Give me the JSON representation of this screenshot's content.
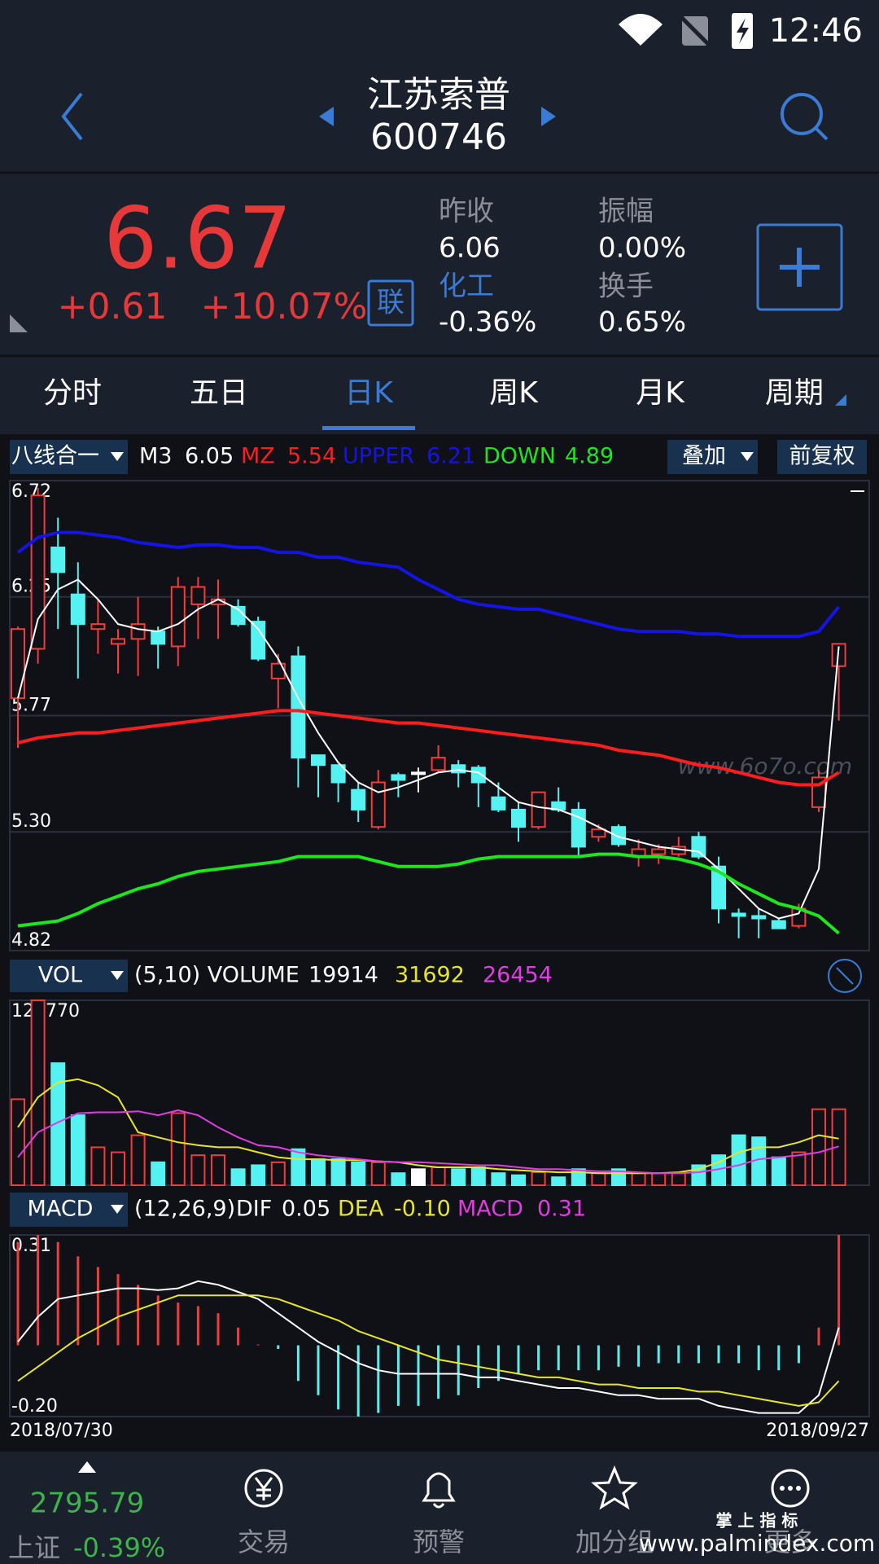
{
  "status_bar": {
    "time": "12:46"
  },
  "header": {
    "name": "江苏索普",
    "code": "600746"
  },
  "quote": {
    "price": "6.67",
    "change": "+0.61",
    "change_pct": "+10.07%",
    "badge": "联",
    "fields": [
      {
        "label": "昨收",
        "value": "6.06"
      },
      {
        "label": "振幅",
        "value": "0.00%"
      },
      {
        "label": "化工",
        "value": "-0.36%"
      },
      {
        "label": "换手",
        "value": "0.65%"
      }
    ]
  },
  "tabs": {
    "items": [
      "分时",
      "五日",
      "日K",
      "周K",
      "月K",
      "周期"
    ],
    "selected": 2
  },
  "chart_controls": {
    "overlay": "叠加",
    "adjust": "前复权"
  },
  "chart_data": [
    {
      "type": "candlestick",
      "indicator": "八线合一",
      "up_color": "#f03c3c",
      "down_color": "#55f2f2",
      "doji_color": "#ffffff",
      "open": [
        5.84,
        6.04,
        6.45,
        6.26,
        6.12,
        6.06,
        6.08,
        6.11,
        6.05,
        6.22,
        6.22,
        6.21,
        6.15,
        5.92,
        6.01,
        5.61,
        5.57,
        5.47,
        5.32,
        5.53,
        5.54,
        5.55,
        5.57,
        5.56,
        5.44,
        5.39,
        5.32,
        5.42,
        5.39,
        5.28,
        5.32,
        5.2,
        5.21,
        5.21,
        5.28,
        5.16,
        4.97,
        4.96,
        4.94,
        4.92,
        5.4,
        5.97
      ],
      "high": [
        6.13,
        6.69,
        6.57,
        6.39,
        6.24,
        6.12,
        6.25,
        6.13,
        6.33,
        6.33,
        6.32,
        6.24,
        6.17,
        6.02,
        6.05,
        5.61,
        5.57,
        5.5,
        5.55,
        5.54,
        5.56,
        5.65,
        5.59,
        5.57,
        5.5,
        5.42,
        5.46,
        5.48,
        5.42,
        5.33,
        5.33,
        5.27,
        5.25,
        5.28,
        5.3,
        5.2,
        4.99,
        4.99,
        4.95,
        5.01,
        5.55,
        6.06
      ],
      "low": [
        5.64,
        5.98,
        6.12,
        5.92,
        6.02,
        5.94,
        5.93,
        5.96,
        5.97,
        6.08,
        6.08,
        6.13,
        5.99,
        5.8,
        5.48,
        5.44,
        5.42,
        5.34,
        5.31,
        5.44,
        5.46,
        5.54,
        5.48,
        5.4,
        5.38,
        5.26,
        5.31,
        5.38,
        5.2,
        5.26,
        5.24,
        5.16,
        5.17,
        5.2,
        5.19,
        4.93,
        4.87,
        4.87,
        4.91,
        4.91,
        5.38,
        5.75
      ],
      "close": [
        6.12,
        6.66,
        6.35,
        6.14,
        6.14,
        6.08,
        6.14,
        6.06,
        6.29,
        6.29,
        6.24,
        6.14,
        6.0,
        5.98,
        5.6,
        5.57,
        5.5,
        5.39,
        5.5,
        5.51,
        5.54,
        5.6,
        5.54,
        5.5,
        5.39,
        5.32,
        5.46,
        5.39,
        5.24,
        5.31,
        5.25,
        5.23,
        5.23,
        5.24,
        5.2,
        4.99,
        4.96,
        4.95,
        4.91,
        4.99,
        5.52,
        6.06
      ],
      "series": [
        {
          "name": "M3",
          "color": "#ffffff",
          "values": [
            5.84,
            6.16,
            6.28,
            6.32,
            6.24,
            6.14,
            6.12,
            6.11,
            6.14,
            6.2,
            6.24,
            6.2,
            6.12,
            6,
            5.84,
            5.7,
            5.58,
            5.5,
            5.46,
            5.48,
            5.51,
            5.54,
            5.55,
            5.54,
            5.48,
            5.42,
            5.4,
            5.39,
            5.36,
            5.32,
            5.28,
            5.26,
            5.24,
            5.23,
            5.22,
            5.15,
            5.07,
            4.99,
            4.95,
            4.97,
            5.15,
            6.05
          ]
        },
        {
          "name": "MZ",
          "color": "#ff1e1e",
          "values": [
            5.66,
            5.68,
            5.69,
            5.7,
            5.7,
            5.71,
            5.72,
            5.73,
            5.74,
            5.75,
            5.76,
            5.77,
            5.78,
            5.79,
            5.79,
            5.78,
            5.77,
            5.76,
            5.75,
            5.74,
            5.74,
            5.73,
            5.72,
            5.71,
            5.7,
            5.69,
            5.68,
            5.67,
            5.66,
            5.65,
            5.63,
            5.62,
            5.61,
            5.59,
            5.57,
            5.56,
            5.54,
            5.52,
            5.5,
            5.49,
            5.49,
            5.54
          ]
        },
        {
          "name": "UPPER",
          "color": "#1414e6",
          "values": [
            6.43,
            6.49,
            6.51,
            6.51,
            6.5,
            6.49,
            6.47,
            6.46,
            6.45,
            6.46,
            6.46,
            6.45,
            6.45,
            6.43,
            6.43,
            6.41,
            6.41,
            6.39,
            6.38,
            6.37,
            6.32,
            6.28,
            6.24,
            6.22,
            6.21,
            6.2,
            6.2,
            6.18,
            6.16,
            6.14,
            6.12,
            6.11,
            6.11,
            6.11,
            6.1,
            6.1,
            6.09,
            6.09,
            6.09,
            6.09,
            6.11,
            6.21
          ]
        },
        {
          "name": "DOWN",
          "color": "#1ee61e",
          "values": [
            4.92,
            4.93,
            4.94,
            4.97,
            5.01,
            5.04,
            5.07,
            5.09,
            5.12,
            5.14,
            5.15,
            5.16,
            5.17,
            5.18,
            5.2,
            5.2,
            5.2,
            5.2,
            5.18,
            5.16,
            5.16,
            5.16,
            5.17,
            5.19,
            5.2,
            5.2,
            5.2,
            5.2,
            5.2,
            5.21,
            5.21,
            5.2,
            5.2,
            5.19,
            5.17,
            5.14,
            5.09,
            5.05,
            5.01,
            4.99,
            4.96,
            4.89
          ]
        }
      ],
      "ylim": [
        4.82,
        6.72
      ],
      "yticks": [
        6.72,
        6.25,
        5.77,
        {
          "value": 5.3,
          "label": "5.30"
        },
        4.82
      ],
      "grid": true
    },
    {
      "type": "volume",
      "indicator": "VOL",
      "legend_label": "(5,10) VOLUME",
      "current_volume": 19914,
      "values": [
        58500,
        125770,
        83000,
        47600,
        25800,
        22400,
        34000,
        15600,
        49000,
        20400,
        20400,
        10900,
        13600,
        15600,
        24500,
        17700,
        17700,
        15600,
        15600,
        8200,
        10900,
        12200,
        10900,
        12200,
        8200,
        6800,
        8800,
        5400,
        10900,
        8200,
        10900,
        8200,
        8200,
        8200,
        13600,
        20400,
        34000,
        32600,
        19000,
        22400,
        51700,
        51700
      ],
      "series": [
        {
          "color": "#e6e628",
          "values": [
            39400,
            59800,
            70000,
            72100,
            68000,
            59800,
            36000,
            32600,
            29200,
            27200,
            25800,
            25800,
            22400,
            19000,
            17700,
            17700,
            17000,
            17000,
            16300,
            15600,
            13600,
            12200,
            12200,
            12200,
            10900,
            10200,
            9500,
            8800,
            8800,
            8200,
            8200,
            8200,
            8200,
            8800,
            10900,
            15600,
            22400,
            25800,
            25800,
            29200,
            34000,
            31692
          ]
        },
        {
          "color": "#e03ce0",
          "values": [
            19000,
            36000,
            42800,
            49000,
            49600,
            49600,
            50300,
            47600,
            51000,
            47600,
            39400,
            32600,
            27200,
            25800,
            22400,
            20400,
            19000,
            17700,
            16300,
            15600,
            15600,
            15000,
            14300,
            13600,
            13600,
            12200,
            10900,
            10900,
            10200,
            9500,
            9500,
            8800,
            8200,
            8200,
            8800,
            10900,
            13600,
            17700,
            19000,
            20400,
            22400,
            26454
          ]
        }
      ],
      "ylim": [
        0,
        125770
      ],
      "yticks": [
        125770
      ]
    },
    {
      "type": "macd",
      "indicator": "MACD",
      "params": "(12,26,9)",
      "bar_name": "MACD",
      "bar_color": "#e03ce0",
      "values": [
        0.29,
        0.31,
        0.29,
        0.25,
        0.22,
        0.2,
        0.17,
        0.14,
        0.12,
        0.11,
        0.09,
        0.05,
        0,
        -0.01,
        -0.1,
        -0.14,
        -0.18,
        -0.2,
        -0.19,
        -0.17,
        -0.17,
        -0.15,
        -0.14,
        -0.12,
        -0.1,
        -0.08,
        -0.07,
        -0.07,
        -0.07,
        -0.07,
        -0.06,
        -0.06,
        -0.05,
        -0.05,
        -0.05,
        -0.05,
        -0.05,
        -0.07,
        -0.07,
        -0.05,
        0.05,
        0.31
      ],
      "series": [
        {
          "name": "DIF",
          "color": "#ffffff",
          "values": [
            0.01,
            0.08,
            0.13,
            0.14,
            0.15,
            0.16,
            0.16,
            0.155,
            0.16,
            0.18,
            0.17,
            0.15,
            0.13,
            0.09,
            0.05,
            0.01,
            -0.02,
            -0.05,
            -0.07,
            -0.08,
            -0.08,
            -0.08,
            -0.08,
            -0.09,
            -0.09,
            -0.1,
            -0.11,
            -0.12,
            -0.12,
            -0.13,
            -0.14,
            -0.14,
            -0.15,
            -0.15,
            -0.15,
            -0.17,
            -0.18,
            -0.19,
            -0.19,
            -0.19,
            -0.14,
            0.05
          ]
        },
        {
          "name": "DEA",
          "color": "#e6e628",
          "legend_label": "-0.10",
          "values": [
            -0.1,
            -0.06,
            -0.02,
            0.02,
            0.05,
            0.08,
            0.1,
            0.12,
            0.14,
            0.14,
            0.14,
            0.14,
            0.14,
            0.13,
            0.11,
            0.09,
            0.07,
            0.04,
            0.02,
            0,
            -0.02,
            -0.04,
            -0.05,
            -0.06,
            -0.07,
            -0.08,
            -0.09,
            -0.09,
            -0.1,
            -0.11,
            -0.11,
            -0.12,
            -0.12,
            -0.12,
            -0.13,
            -0.13,
            -0.14,
            -0.15,
            -0.16,
            -0.17,
            -0.16,
            -0.1
          ]
        }
      ],
      "ylim": [
        -0.2,
        0.31
      ],
      "yticks": [
        0.31,
        {
          "value": -0.2,
          "label": "-0.20"
        }
      ],
      "date_range": [
        "2018/07/30",
        "2018/09/27"
      ]
    }
  ],
  "bottom_nav": {
    "index_value": "2795.79",
    "index_name": "上证",
    "index_change": "-0.39%",
    "items": [
      "交易",
      "预警",
      "加分组",
      "更多"
    ]
  },
  "watermarks": [
    "www.6o7o.com",
    "掌 上 指 标",
    "www.palmindex.com"
  ]
}
